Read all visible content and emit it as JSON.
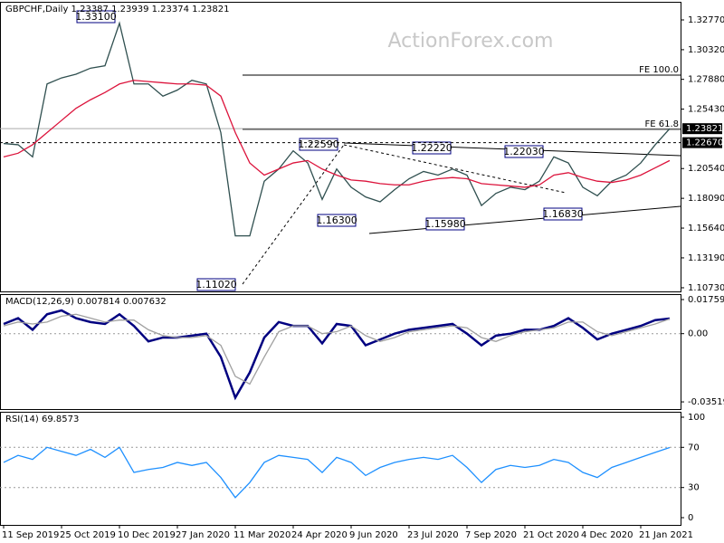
{
  "watermark": "ActionForex.com",
  "annotations": [
    "1.33100",
    "1.11020",
    "1.22590",
    "1.22220",
    "1.22030",
    "1.16300",
    "1.15980",
    "1.16830"
  ],
  "chart_data": [
    {
      "type": "line",
      "title": "GBPCHF,Daily 1.23387 1.23939 1.23374 1.23821",
      "ylim": [
        1.1043,
        1.3426
      ],
      "yticks": [
        {
          "value": 1.3277,
          "label": "1.32770"
        },
        {
          "value": 1.3032,
          "label": "1.30320"
        },
        {
          "value": 1.2788,
          "label": "1.27880"
        },
        {
          "value": 1.2543,
          "label": "1.25430"
        },
        {
          "value": 1.2054,
          "label": "1.20540"
        },
        {
          "value": 1.1809,
          "label": "1.18090"
        },
        {
          "value": 1.1564,
          "label": "1.15640"
        },
        {
          "value": 1.1319,
          "label": "1.13190"
        },
        {
          "value": 1.1073,
          "label": "1.10730"
        }
      ],
      "levels": [
        {
          "value": 1.2823,
          "label": "FE 100.0"
        },
        {
          "value": 1.2377,
          "label": "FE 61.8"
        }
      ],
      "price_tags": [
        {
          "value": 1.23821,
          "label": "1.23821"
        },
        {
          "value": 1.2267,
          "label": "1.22670"
        }
      ],
      "series": [
        {
          "color": "#2f4f4f",
          "values": [
            1.226,
            1.225,
            1.215,
            1.275,
            1.28,
            1.283,
            1.288,
            1.29,
            1.325,
            1.275,
            1.275,
            1.265,
            1.27,
            1.278,
            1.275,
            1.235,
            1.15,
            1.15,
            1.195,
            1.205,
            1.22,
            1.21,
            1.18,
            1.205,
            1.19,
            1.182,
            1.178,
            1.188,
            1.197,
            1.203,
            1.2,
            1.205,
            1.2,
            1.175,
            1.185,
            1.19,
            1.188,
            1.195,
            1.215,
            1.21,
            1.19,
            1.183,
            1.195,
            1.2,
            1.21,
            1.225,
            1.2382
          ]
        },
        {
          "color": "#dc143c",
          "values": [
            1.215,
            1.218,
            1.225,
            1.235,
            1.245,
            1.255,
            1.262,
            1.268,
            1.275,
            1.278,
            1.277,
            1.276,
            1.275,
            1.275,
            1.274,
            1.265,
            1.235,
            1.21,
            1.2,
            1.205,
            1.21,
            1.212,
            1.205,
            1.2,
            1.196,
            1.195,
            1.193,
            1.192,
            1.192,
            1.195,
            1.197,
            1.198,
            1.197,
            1.193,
            1.192,
            1.191,
            1.19,
            1.192,
            1.2,
            1.202,
            1.198,
            1.195,
            1.194,
            1.196,
            1.2,
            1.206,
            1.212
          ]
        }
      ]
    },
    {
      "type": "line",
      "title": "MACD(12,26,9) 0.007814 0.007632",
      "ylim": [
        -0.0389,
        0.0204
      ],
      "yticks": [
        0.017599,
        {
          "value": 0,
          "label": "0.00"
        },
        -0.035194
      ],
      "levels": [
        0
      ],
      "series": [
        {
          "color": "#000080",
          "values": [
            0.005,
            0.008,
            0.002,
            0.01,
            0.012,
            0.008,
            0.006,
            0.005,
            0.01,
            0.004,
            -0.004,
            -0.002,
            -0.002,
            -0.001,
            0,
            -0.012,
            -0.033,
            -0.02,
            -0.002,
            0.006,
            0.004,
            0.004,
            -0.005,
            0.005,
            0.004,
            -0.006,
            -0.003,
            0,
            0.002,
            0.003,
            0.004,
            0.005,
            0,
            -0.006,
            -0.001,
            0,
            0.002,
            0.002,
            0.004,
            0.008,
            0.003,
            -0.003,
            0,
            0.002,
            0.004,
            0.007,
            0.0078
          ]
        },
        {
          "color": "#a0a0a0",
          "values": [
            0.004,
            0.006,
            0.005,
            0.006,
            0.009,
            0.01,
            0.008,
            0.006,
            0.007,
            0.007,
            0.002,
            -0.001,
            -0.002,
            -0.002,
            -0.001,
            -0.006,
            -0.022,
            -0.026,
            -0.012,
            0.001,
            0.004,
            0.004,
            0,
            0.001,
            0.004,
            -0.001,
            -0.004,
            -0.002,
            0.001,
            0.002,
            0.003,
            0.004,
            0.003,
            -0.002,
            -0.004,
            -0.001,
            0.001,
            0.002,
            0.003,
            0.006,
            0.006,
            0.001,
            -0.001,
            0.001,
            0.003,
            0.005,
            0.0076
          ]
        }
      ]
    },
    {
      "type": "line",
      "title": "RSI(14) 69.8573",
      "ylim": [
        -7.2,
        105.4
      ],
      "yticks": [
        100,
        70,
        30,
        0
      ],
      "levels": [
        70,
        30
      ],
      "categories": [
        "11 Sep 2019",
        null,
        null,
        null,
        "25 Oct 2019",
        null,
        null,
        null,
        "10 Dec 2019",
        null,
        null,
        null,
        "27 Jan 2020",
        null,
        null,
        null,
        "11 Mar 2020",
        null,
        null,
        null,
        "24 Apr 2020",
        null,
        null,
        null,
        "9 Jun 2020",
        null,
        null,
        null,
        "23 Jul 2020",
        null,
        null,
        null,
        "7 Sep 2020",
        null,
        null,
        null,
        "21 Oct 2020",
        null,
        null,
        null,
        "4 Dec 2020",
        null,
        null,
        null,
        "21 Jan 2021",
        null,
        null
      ],
      "series": [
        {
          "color": "#1e90ff",
          "values": [
            55,
            62,
            58,
            70,
            66,
            62,
            68,
            60,
            70,
            45,
            48,
            50,
            55,
            52,
            55,
            40,
            20,
            35,
            55,
            62,
            60,
            58,
            45,
            60,
            55,
            42,
            50,
            55,
            58,
            60,
            58,
            62,
            50,
            35,
            48,
            52,
            50,
            52,
            58,
            55,
            45,
            40,
            50,
            55,
            60,
            65,
            69.8573
          ]
        }
      ]
    }
  ]
}
